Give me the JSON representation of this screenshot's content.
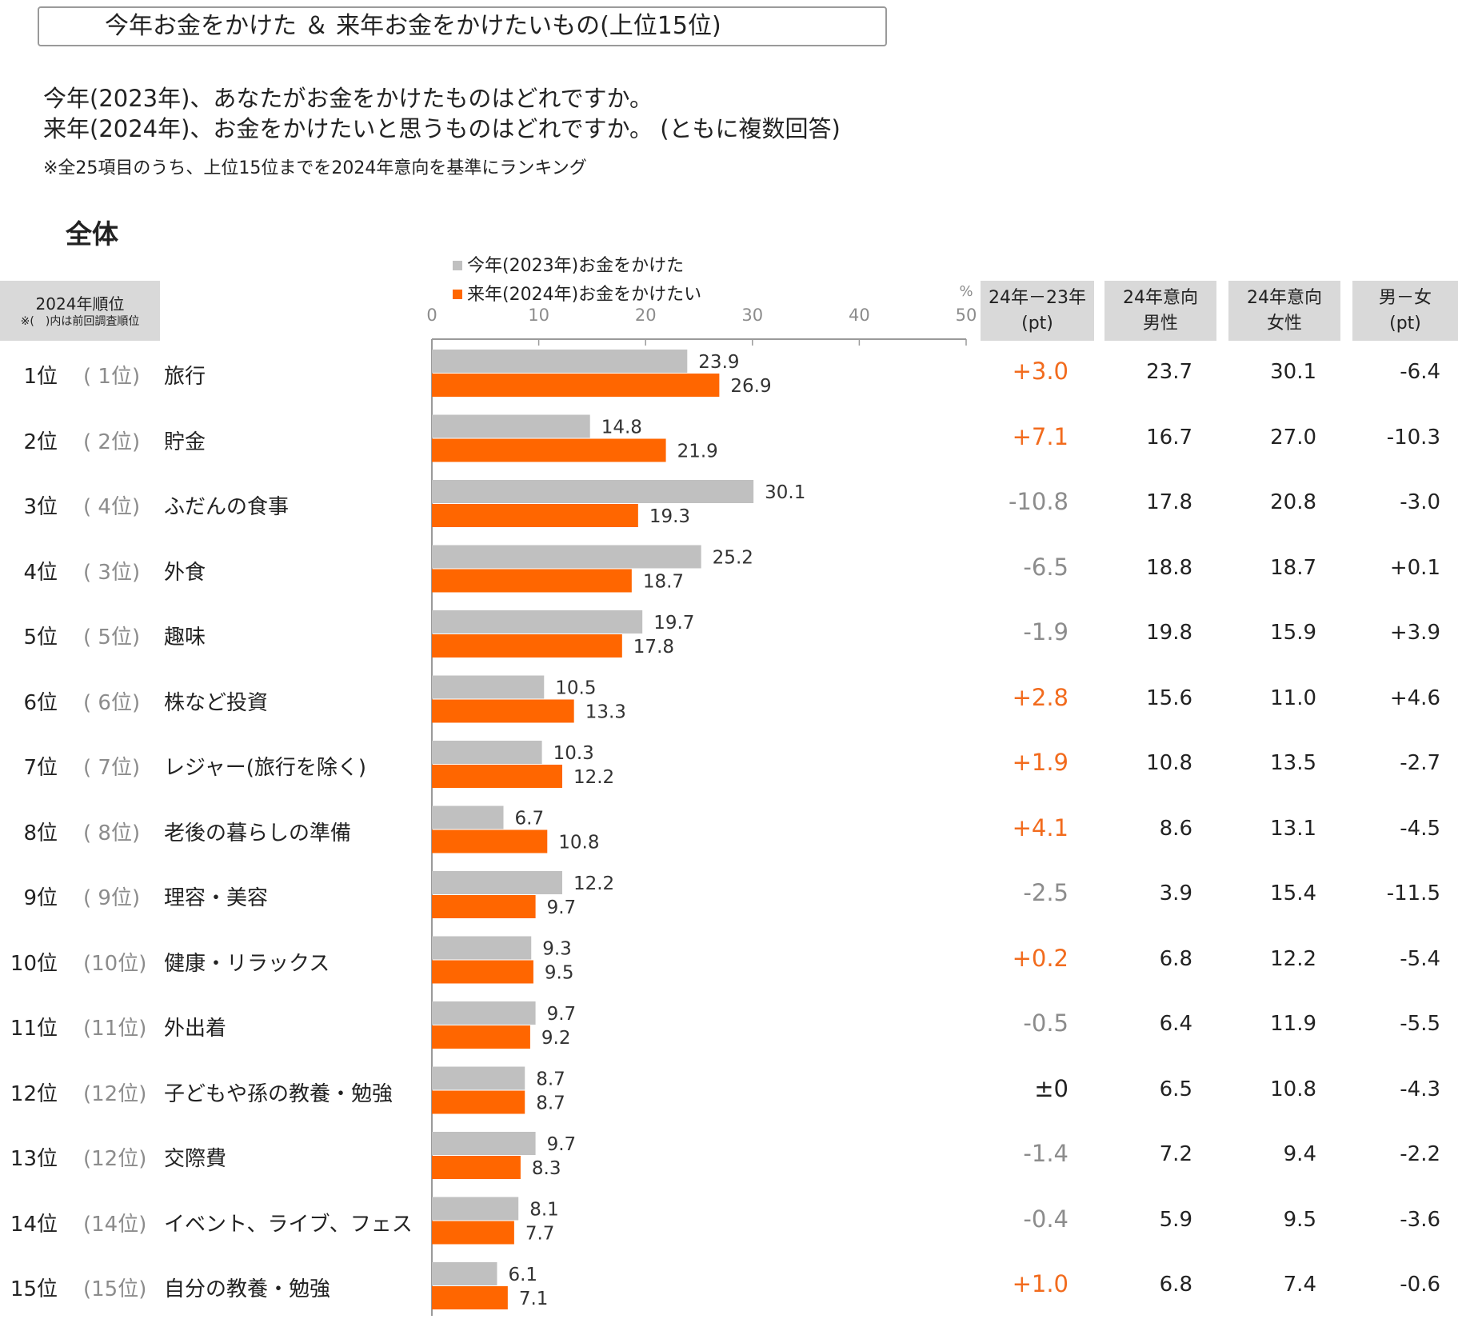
{
  "title": "今年お金をかけた ＆ 来年お金をかけたいもの(上位15位)",
  "questions": [
    "今年(2023年)、あなたがお金をかけたものはどれですか。",
    "来年(2024年)、お金をかけたいと思うものはどれですか。 (ともに複数回答)"
  ],
  "note": "※全25項目のうち、上位15位までを2024年意向を基準にランキング",
  "section": "全体",
  "colors": {
    "gray_bar": "#c0c0c0",
    "orange_bar": "#ff6600",
    "positive_diff": "#f26b1d",
    "negative_diff": "#8c8c8c",
    "header_bg": "#d9d9d9"
  },
  "headers": {
    "rank_main": "2024年順位",
    "rank_sub": "※(　)内は前回調査順位",
    "diff": [
      "24年－23年",
      "(pt)"
    ],
    "male": [
      "24年意向",
      "男性"
    ],
    "female": [
      "24年意向",
      "女性"
    ],
    "gender_diff": [
      "男－女",
      "(pt)"
    ]
  },
  "chart_data": {
    "type": "bar",
    "orientation": "horizontal",
    "unit": "%",
    "xlim": [
      0,
      50
    ],
    "x_ticks": [
      "0",
      "10",
      "20",
      "30",
      "40",
      "50"
    ],
    "grid": false,
    "legend_position": "top",
    "categories": [
      "旅行",
      "貯金",
      "ふだんの食事",
      "外食",
      "趣味",
      "株など投資",
      "レジャー(旅行を除く)",
      "老後の暮らしの準備",
      "理容・美容",
      "健康・リラックス",
      "外出着",
      "子どもや孫の教養・勉強",
      "交際費",
      "イベント、ライブ、フェス",
      "自分の教養・勉強"
    ],
    "series": [
      {
        "name": "今年(2023年)お金をかけた",
        "values": [
          23.9,
          14.8,
          30.1,
          25.2,
          19.7,
          10.5,
          10.3,
          6.7,
          12.2,
          9.3,
          9.7,
          8.7,
          9.7,
          8.1,
          6.1
        ],
        "labels": [
          "23.9",
          "14.8",
          "30.1",
          "25.2",
          "19.7",
          "10.5",
          "10.3",
          "6.7",
          "12.2",
          "9.3",
          "9.7",
          "8.7",
          "9.7",
          "8.1",
          "6.1"
        ]
      },
      {
        "name": "来年(2024年)お金をかけたい",
        "values": [
          26.9,
          21.9,
          19.3,
          18.7,
          17.8,
          13.3,
          12.2,
          10.8,
          9.7,
          9.5,
          9.2,
          8.7,
          8.3,
          7.7,
          7.1
        ],
        "labels": [
          "26.9",
          "21.9",
          "19.3",
          "18.7",
          "17.8",
          "13.3",
          "12.2",
          "10.8",
          "9.7",
          "9.5",
          "9.2",
          "8.7",
          "8.3",
          "7.7",
          "7.1"
        ]
      }
    ]
  },
  "rows": [
    {
      "rank": "1位",
      "prev": "( 1位)",
      "label": "旅行",
      "diff": "+3.0",
      "diff_sign": "pos",
      "male": "23.7",
      "female": "30.1",
      "gdiff": "-6.4"
    },
    {
      "rank": "2位",
      "prev": "( 2位)",
      "label": "貯金",
      "diff": "+7.1",
      "diff_sign": "pos",
      "male": "16.7",
      "female": "27.0",
      "gdiff": "-10.3"
    },
    {
      "rank": "3位",
      "prev": "( 4位)",
      "label": "ふだんの食事",
      "diff": "-10.8",
      "diff_sign": "neg",
      "male": "17.8",
      "female": "20.8",
      "gdiff": "-3.0"
    },
    {
      "rank": "4位",
      "prev": "( 3位)",
      "label": "外食",
      "diff": "-6.5",
      "diff_sign": "neg",
      "male": "18.8",
      "female": "18.7",
      "gdiff": "+0.1"
    },
    {
      "rank": "5位",
      "prev": "( 5位)",
      "label": "趣味",
      "diff": "-1.9",
      "diff_sign": "neg",
      "male": "19.8",
      "female": "15.9",
      "gdiff": "+3.9"
    },
    {
      "rank": "6位",
      "prev": "( 6位)",
      "label": "株など投資",
      "diff": "+2.8",
      "diff_sign": "pos",
      "male": "15.6",
      "female": "11.0",
      "gdiff": "+4.6"
    },
    {
      "rank": "7位",
      "prev": "( 7位)",
      "label": "レジャー(旅行を除く)",
      "diff": "+1.9",
      "diff_sign": "pos",
      "male": "10.8",
      "female": "13.5",
      "gdiff": "-2.7"
    },
    {
      "rank": "8位",
      "prev": "( 8位)",
      "label": "老後の暮らしの準備",
      "diff": "+4.1",
      "diff_sign": "pos",
      "male": "8.6",
      "female": "13.1",
      "gdiff": "-4.5"
    },
    {
      "rank": "9位",
      "prev": "( 9位)",
      "label": "理容・美容",
      "diff": "-2.5",
      "diff_sign": "neg",
      "male": "3.9",
      "female": "15.4",
      "gdiff": "-11.5"
    },
    {
      "rank": "10位",
      "prev": "(10位)",
      "label": "健康・リラックス",
      "diff": "+0.2",
      "diff_sign": "pos",
      "male": "6.8",
      "female": "12.2",
      "gdiff": "-5.4"
    },
    {
      "rank": "11位",
      "prev": "(11位)",
      "label": "外出着",
      "diff": "-0.5",
      "diff_sign": "neg",
      "male": "6.4",
      "female": "11.9",
      "gdiff": "-5.5"
    },
    {
      "rank": "12位",
      "prev": "(12位)",
      "label": "子どもや孫の教養・勉強",
      "diff": "±0",
      "diff_sign": "zero",
      "male": "6.5",
      "female": "10.8",
      "gdiff": "-4.3"
    },
    {
      "rank": "13位",
      "prev": "(12位)",
      "label": "交際費",
      "diff": "-1.4",
      "diff_sign": "neg",
      "male": "7.2",
      "female": "9.4",
      "gdiff": "-2.2"
    },
    {
      "rank": "14位",
      "prev": "(14位)",
      "label": "イベント、ライブ、フェス",
      "diff": "-0.4",
      "diff_sign": "neg",
      "male": "5.9",
      "female": "9.5",
      "gdiff": "-3.6"
    },
    {
      "rank": "15位",
      "prev": "(15位)",
      "label": "自分の教養・勉強",
      "diff": "+1.0",
      "diff_sign": "pos",
      "male": "6.8",
      "female": "7.4",
      "gdiff": "-0.6"
    }
  ]
}
